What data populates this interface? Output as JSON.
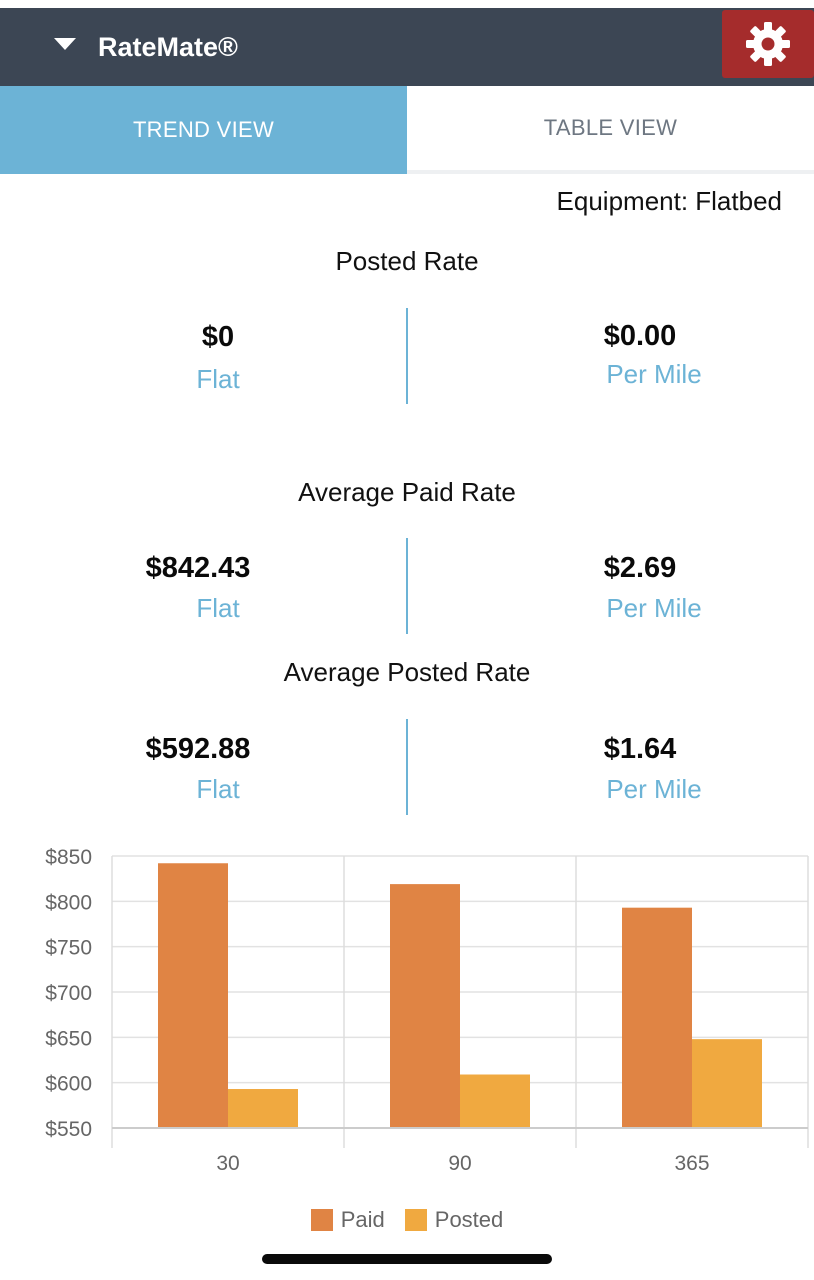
{
  "header": {
    "title": "RateMate®",
    "menu_icon": "caret-down-icon",
    "settings_icon": "gear-icon",
    "settings_color": "#a52c2c",
    "bar_color": "#3c4654"
  },
  "tabs": [
    {
      "label": "TREND VIEW",
      "active": true
    },
    {
      "label": "TABLE VIEW",
      "active": false
    }
  ],
  "equipment": "Equipment: Flatbed",
  "sections": [
    {
      "title": "Posted Rate",
      "flat_value": "$0",
      "flat_label": "Flat",
      "mile_value": "$0.00",
      "mile_label": "Per Mile"
    },
    {
      "title": "Average Paid Rate",
      "flat_value": "$842.43",
      "flat_label": "Flat",
      "mile_value": "$2.69",
      "mile_label": "Per Mile"
    },
    {
      "title": "Average Posted Rate",
      "flat_value": "$592.88",
      "flat_label": "Flat",
      "mile_value": "$1.64",
      "mile_label": "Per Mile"
    }
  ],
  "chart_data": {
    "type": "bar",
    "categories": [
      "30",
      "90",
      "365"
    ],
    "series": [
      {
        "name": "Paid",
        "values": [
          842,
          819,
          793
        ],
        "color": "#e08444"
      },
      {
        "name": "Posted",
        "values": [
          593,
          609,
          648
        ],
        "color": "#f0a940"
      }
    ],
    "ylim": [
      550,
      850
    ],
    "yticks": [
      "$550",
      "$600",
      "$650",
      "$700",
      "$750",
      "$800",
      "$850"
    ],
    "ytick_values": [
      550,
      600,
      650,
      700,
      750,
      800,
      850
    ],
    "grid": true,
    "legend": "bottom"
  }
}
